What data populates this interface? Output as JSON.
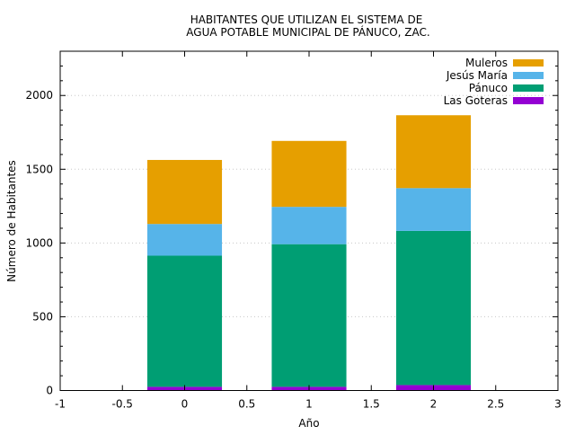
{
  "chart_data": {
    "type": "bar",
    "stacked": true,
    "title_lines": [
      "HABITANTES QUE UTILIZAN EL SISTEMA DE",
      "AGUA POTABLE MUNICIPAL DE PÁNUCO, ZAC."
    ],
    "xlabel": "Año",
    "ylabel": "Número de Habitantes",
    "x": [
      0,
      1,
      2
    ],
    "xlim": [
      -1,
      3
    ],
    "ylim": [
      0,
      2300
    ],
    "xticks": [
      "-1",
      "-0.5",
      "0",
      "0.5",
      "1",
      "1.5",
      "2",
      "2.5",
      "3"
    ],
    "yticks": [
      "0",
      "500",
      "1000",
      "1500",
      "2000"
    ],
    "grid": true,
    "legend_position": "top-right",
    "series": [
      {
        "name": "Las Goteras",
        "color": "#9400d3",
        "values": [
          25,
          25,
          37
        ]
      },
      {
        "name": "Pánuco",
        "color": "#009e73",
        "values": [
          889,
          967,
          1045
        ]
      },
      {
        "name": "Jesús María",
        "color": "#56b4e9",
        "values": [
          215,
          253,
          290
        ]
      },
      {
        "name": "Muleros",
        "color": "#e69f00",
        "values": [
          434,
          447,
          494
        ]
      }
    ]
  }
}
